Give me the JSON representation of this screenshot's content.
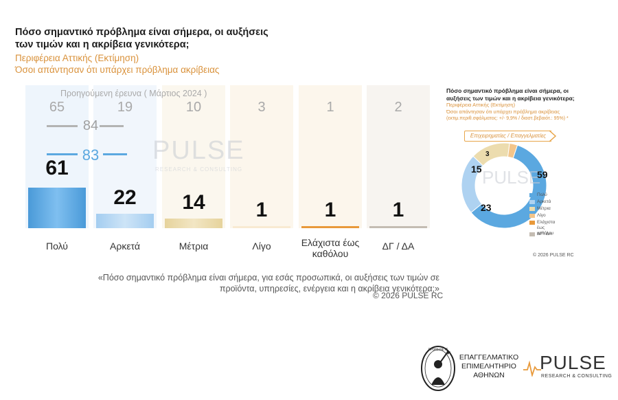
{
  "title": "Πόσο σημαντικό πρόβλημα είναι σήμερα, οι αυξήσεις των τιμών και η ακρίβεια γενικότερα;",
  "subtitle_1": "Περιφέρεια Αττικής  (Εκτίμηση)",
  "subtitle_2": "Όσοι απάντησαν ότι υπάρχει πρόβλημα ακρίβειας",
  "previous_label": "Προηγούμενη έρευνα  ( Μάρτιος 2024 )",
  "watermark": {
    "brand": "PULSE",
    "tagline": "RESEARCH & CONSULTING"
  },
  "chart_data": [
    {
      "type": "bar",
      "categories": [
        "Πολύ",
        "Αρκετά",
        "Μέτρια",
        "Λίγο",
        "Ελάχιστα έως καθόλου",
        "ΔΓ / ΔΑ"
      ],
      "series": [
        {
          "name": "",
          "values": [
            61,
            22,
            14,
            1,
            1,
            1
          ]
        },
        {
          "name": "Προηγούμενη έρευνα  ( Μάρτιος 2024 )",
          "values": [
            65,
            19,
            10,
            3,
            1,
            2
          ]
        }
      ],
      "ylim": [
        0,
        65
      ],
      "grouped_totals": [
        {
          "value": 84,
          "spans": [
            "Πολύ",
            "Αρκετά"
          ],
          "series": "Προηγούμενη έρευνα  ( Μάρτιος 2024 )"
        },
        {
          "value": 83,
          "spans": [
            "Πολύ",
            "Αρκετά"
          ],
          "series": ""
        }
      ],
      "colors": [
        "#5ba8e0",
        "#aed2f1",
        "#ecdcae",
        "#f8ead2",
        "#e8993a",
        "#c4bcb2"
      ],
      "xlabel": "",
      "ylabel": ""
    },
    {
      "type": "pie",
      "title": "Πόσο σημαντικό πρόβλημα είναι σήμερα, οι αυξήσεις των τιμών και η ακρίβεια γενικότερα;",
      "subtitle_1": "Περιφέρεια Αττικής  (Εκτίμηση)",
      "subtitle_2": "Όσοι απάντησαν ότι υπάρχει πρόβλημα ακρίβειας",
      "note": "(εκτιμ.περιθ.σφάλματος: +/- 9,9% / διαστ.βεβαιότ.: 95%) *",
      "segment_label": "Επιχειρηματίες / Επαγγελματίες",
      "labels": [
        "Πολύ",
        "Αρκετά",
        "Μέτρια",
        "Λίγο",
        "Ελάχιστα έως καθόλου",
        "ΔΓ / ΔΑ"
      ],
      "values": [
        59,
        23,
        15,
        3,
        0,
        0
      ],
      "colors": [
        "#5ba8e0",
        "#aed2f1",
        "#ecdcae",
        "#f3c58a",
        "#e8993a",
        "#c4bcb2"
      ],
      "legend": "right",
      "copyright": "©  2026  PULSE RC"
    }
  ],
  "question": "«Πόσο σημαντικό πρόβλημα είναι σήμερα, για εσάς προσωπικά, οι αυξήσεις των τιμών σε προϊόντα, υπηρεσίες, ενέργεια και η ακρίβεια γενικότερα;»",
  "copyright": "©  2026  PULSE RC",
  "footer": {
    "chamber_line1": "ΕΠΑΓΓΕΛΜΑΤΙΚΟ",
    "chamber_line2": "ΕΠΙΜΕΛΗΤΗΡΙΟ",
    "chamber_line3": "ΑΘΗΝΩΝ",
    "brand": "PULSE",
    "tagline": "RESEARCH & CONSULTING",
    "seal_text": "ΠΡΟΜΗΘΕΥΣ"
  }
}
